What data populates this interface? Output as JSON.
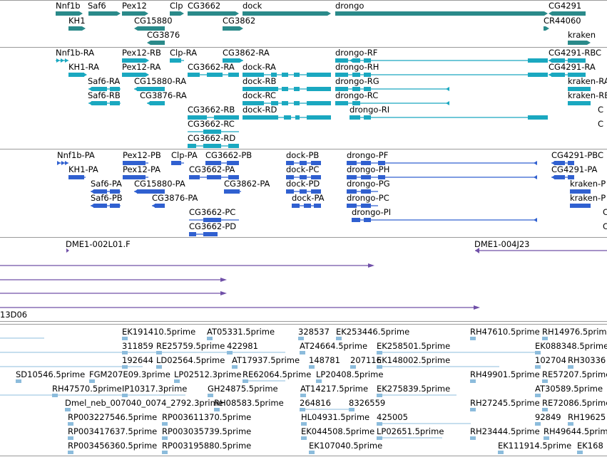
{
  "colors": {
    "gene": "#2a8a8a",
    "mrna": "#1aa8c0",
    "protein": "#3060d0",
    "clone": "#7050a8",
    "est": "#8cbcdc"
  },
  "tracks": {
    "gene": {
      "labels": [
        "Nnf1b",
        "Saf6",
        "Pex12",
        "Clp",
        "CG3662",
        "dock",
        "drongo",
        "CG4291",
        "KH1",
        "CG15880",
        "CG3862",
        "CR44060",
        "CG3876",
        "kraken"
      ]
    },
    "mrna": {
      "labels": [
        "Nnf1b-RA",
        "Pex12-RB",
        "Clp-RA",
        "CG3862-RA",
        "drongo-RF",
        "CG4291-RBC",
        "KH1-RA",
        "Pex12-RA",
        "CG3662-RA",
        "dock-RA",
        "drongo-RH",
        "CG4291-RA",
        "Saf6-RA",
        "CG15880-RA",
        "dock-RB",
        "drongo-RG",
        "kraken-RA",
        "Saf6-RB",
        "CG3876-RA",
        "dock-RC",
        "drongo-RC",
        "kraken-RB",
        "CG3662-RB",
        "dock-RD",
        "drongo-RI",
        "CG3662-RC",
        "CG3662-RD",
        "C",
        "C"
      ]
    },
    "protein": {
      "labels": [
        "Nnf1b-PA",
        "Pex12-PB",
        "Clp-PA",
        "CG3662-PB",
        "dock-PB",
        "drongo-PF",
        "CG4291-PBC",
        "KH1-PA",
        "Pex12-PA",
        "CG3662-PA",
        "dock-PC",
        "drongo-PH",
        "CG4291-PA",
        "Saf6-PA",
        "CG15880-PA",
        "CG3862-PA",
        "dock-PD",
        "drongo-PG",
        "kraken-P",
        "Saf6-PB",
        "CG3876-PA",
        "dock-PA",
        "drongo-PC",
        "kraken-P",
        "CG3662-PC",
        "drongo-PI",
        "CG3662-PD",
        "C",
        "C"
      ]
    },
    "clones": {
      "labels": [
        "DME1-002L01.F",
        "DME1-004J23",
        "13D06"
      ]
    },
    "est": {
      "labels": [
        "EK191410.5prime",
        "AT05331.5prime",
        "328537",
        "EK253446.5prime",
        "RH47610.5prime",
        "RH14976.5prime",
        "311859",
        "RE25759.5prime",
        "422981",
        "AT24664.5prime",
        "EK258501.5prime",
        "EK088348.5prime",
        "192644",
        "LD02564.5prime",
        "AT17937.5prime",
        "148781",
        "207116",
        "EK148002.5prime",
        "102704",
        "RH30336",
        "SD10546.5prime",
        "FGM207E09.3prime",
        "LP02512.3prime",
        "RE62064.5prime",
        "LP20408.5prime",
        "RH49901.5prime",
        "RE57207.5prime",
        "RH47570.5prime",
        "IP10317.3prime",
        "GH24875.5prime",
        "AT14217.5prime",
        "EK275839.5prime",
        "AT30589.5prime",
        "Dmel_neb_007040_0074_2792.3prime",
        "RH08583.5prime",
        "264816",
        "8326559",
        "RH27245.5prime",
        "RE72086.5prime",
        "RP003227546.5prime",
        "RP003611370.5prime",
        "HL04931.5prime",
        "425005",
        "92849",
        "RH19625",
        "RP003417637.5prime",
        "RP003035739.5prime",
        "EK044508.5prime",
        "LP02651.5prime",
        "RH23444.5prime",
        "RH49644.5prime",
        "RP003456360.5prime",
        "RP003195880.5prime",
        "EK107040.5prime",
        "EK111914.5prime",
        "EK168"
      ]
    }
  }
}
